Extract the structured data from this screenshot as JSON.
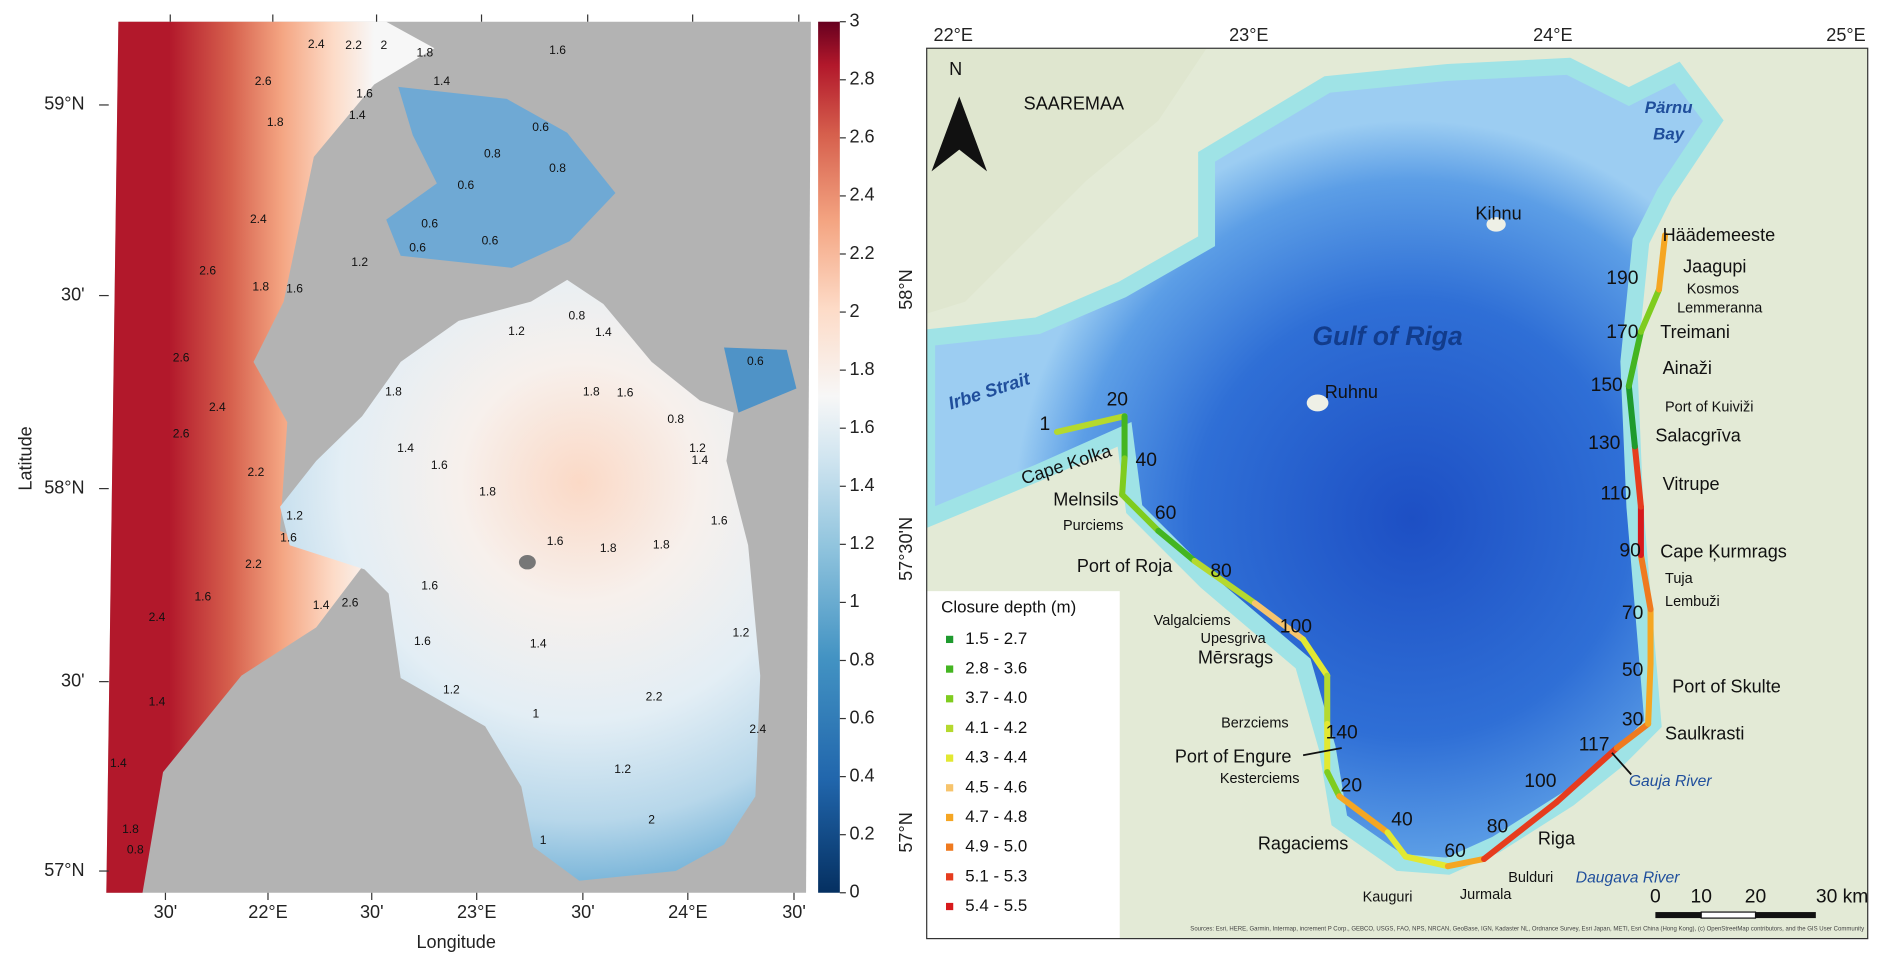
{
  "left_map": {
    "y_label": "Latitude",
    "x_label": "Longitude",
    "lat_ticks": [
      "59°N",
      "30'",
      "58°N",
      "30'",
      "57°N"
    ],
    "lon_ticks": [
      "30'",
      "22°E",
      "30'",
      "23°E",
      "30'",
      "24°E",
      "30'"
    ],
    "colorbar": {
      "lim": [
        0,
        3
      ],
      "ticks": [
        0,
        0.2,
        0.4,
        0.6,
        0.8,
        1,
        1.2,
        1.4,
        1.6,
        1.8,
        2,
        2.2,
        2.4,
        2.6,
        2.8,
        3
      ]
    },
    "contour_labels": [
      "2.4",
      "2.2",
      "2",
      "1.8",
      "1.6",
      "2.6",
      "1.4",
      "1.6",
      "1.8",
      "1.4",
      "0.6",
      "0.8",
      "0.8",
      "0.6",
      "0.6",
      "0.6",
      "0.6",
      "2.4",
      "2.6",
      "1.8",
      "1.6",
      "1.2",
      "0.8",
      "1.2",
      "1.4",
      "2.6",
      "2.4",
      "1.8",
      "1.8",
      "1.6",
      "0.8",
      "0.6",
      "1.4",
      "1.6",
      "1.2",
      "1.4",
      "2.6",
      "2.2",
      "1.8",
      "1.8",
      "1.8",
      "1.6",
      "1.2",
      "1.6",
      "2.2",
      "1.6",
      "1.6",
      "1.4",
      "2.6",
      "2.4",
      "1.6",
      "1.4",
      "1.2",
      "1.6",
      "2.2",
      "1.4",
      "1",
      "1.2",
      "2.4",
      "1.4",
      "1.2",
      "2",
      "1.8",
      "0.8",
      "1"
    ]
  },
  "right_map": {
    "lon_ticks": [
      "22°E",
      "23°E",
      "24°E",
      "25°E"
    ],
    "lat_ticks": [
      "58°N",
      "57°30'N",
      "57°N"
    ],
    "north": "N",
    "labels": [
      "SAAREMAA",
      "Kihnu",
      "Pärnu",
      "Bay",
      "Gulf of Riga",
      "Irbe Strait",
      "Ruhnu",
      "Häädemeeste",
      "Jaagupi",
      "190",
      "Kosmos",
      "Lemmeranna",
      "170",
      "Treimani",
      "Ainaži",
      "150",
      "Port of Kuiviži",
      "Salacgrīva",
      "130",
      "Vitrupe",
      "110",
      "90",
      "Cape Ķurmrags",
      "Tuja",
      "Lembuži",
      "70",
      "50",
      "Port of Skulte",
      "30",
      "Saulkrasti",
      "117",
      "Gauja River",
      "100",
      "80",
      "Riga",
      "60",
      "Bulduri",
      "Daugava River",
      "Jurmala",
      "Kauguri",
      "40",
      "Ragaciems",
      "20",
      "Kesterciems",
      "Port of Engure",
      "140",
      "Berzciems",
      "Mērsrags",
      "Upesgriva",
      "Valgalciems",
      "100",
      "80",
      "Port of Roja",
      "Purciems",
      "60",
      "Melnsils",
      "40",
      "Cape Kolka",
      "1",
      "20"
    ],
    "legend": {
      "title": "Closure depth (m)",
      "entries": [
        {
          "label": "1.5 - 2.7",
          "color": "#1e9a2e"
        },
        {
          "label": "2.8 - 3.6",
          "color": "#44b521"
        },
        {
          "label": "3.7 - 4.0",
          "color": "#7fcc1f"
        },
        {
          "label": "4.1 - 4.2",
          "color": "#b5d92e"
        },
        {
          "label": "4.3 - 4.4",
          "color": "#e2e832"
        },
        {
          "label": "4.5 - 4.6",
          "color": "#f7c46c"
        },
        {
          "label": "4.7 - 4.8",
          "color": "#f5a623"
        },
        {
          "label": "4.9 - 5.0",
          "color": "#ef7a1f"
        },
        {
          "label": "5.1 - 5.3",
          "color": "#e63c1e"
        },
        {
          "label": "5.4 - 5.5",
          "color": "#d7191c"
        }
      ]
    },
    "scale": [
      "0",
      "10",
      "20",
      "30 km"
    ],
    "attribution": "Sources: Esri, HERE, Garmin, Intermap, increment P Corp., GEBCO, USGS, FAO, NPS, NRCAN, GeoBase, IGN, Kadaster NL, Ordnance Survey, Esri Japan, METI, Esri China (Hong Kong), (c) OpenStreetMap contributors, and the GIS User Community"
  }
}
